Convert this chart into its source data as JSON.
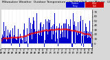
{
  "title": "Milwaukee Weather  Outdoor Temperature",
  "title2": "vs Wind Chill  per Minute  (24 Hours)",
  "bg_color": "#d8d8d8",
  "plot_bg_color": "#ffffff",
  "bar_color": "#0000cc",
  "dot_color": "#ff0000",
  "legend_color1": "#0000cc",
  "legend_color2": "#cc0000",
  "legend_label1": "Outdoor Temp",
  "legend_label2": "Wind Chill",
  "ylim": [
    -10,
    75
  ],
  "yticks": [
    0,
    10,
    20,
    30,
    40,
    50,
    60,
    70
  ],
  "n_points": 1440,
  "seed": 99,
  "title_fontsize": 4.0,
  "tick_fontsize": 2.8,
  "grid_color": "#aaaaaa",
  "n_xticks": 25
}
